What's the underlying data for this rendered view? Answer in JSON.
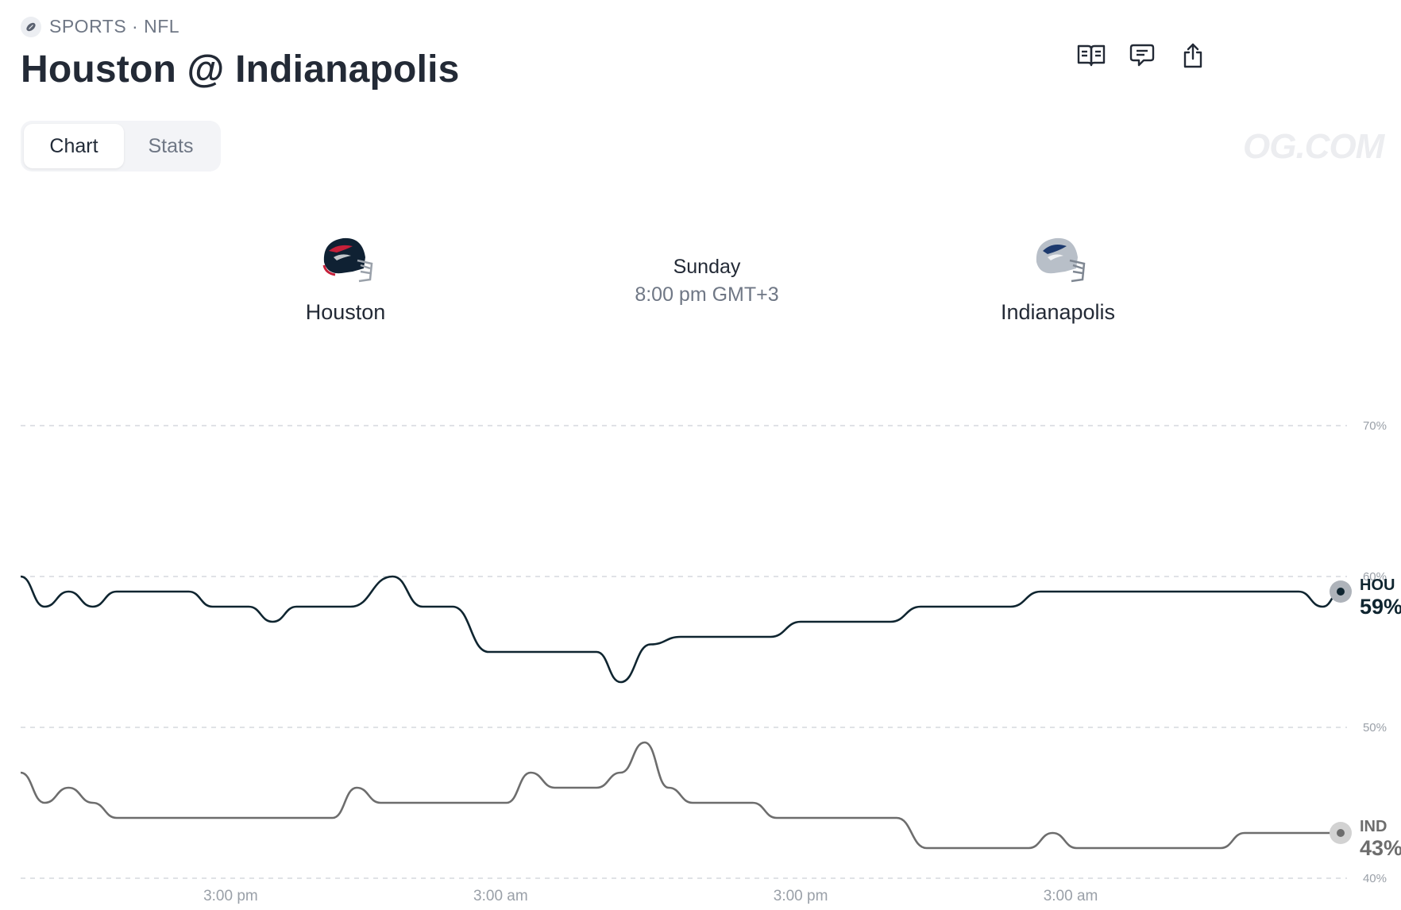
{
  "breadcrumb": {
    "text": "SPORTS · NFL",
    "icon": "football-icon"
  },
  "title": "Houston @ Indianapolis",
  "actions": [
    {
      "name": "rules-button",
      "icon": "book-icon"
    },
    {
      "name": "comments-button",
      "icon": "comment-icon"
    },
    {
      "name": "share-button",
      "icon": "share-icon"
    }
  ],
  "tabs": [
    {
      "label": "Chart",
      "active": true
    },
    {
      "label": "Stats",
      "active": false
    }
  ],
  "watermark": "OG.COM",
  "teams": {
    "home": {
      "name": "Houston",
      "icon": "houston-helmet-icon",
      "color": "#0f2133",
      "accent": "#c6203a"
    },
    "away": {
      "name": "Indianapolis",
      "icon": "indianapolis-helmet-icon",
      "color": "#b8bfc8",
      "accent": "#1d3a6e"
    }
  },
  "game": {
    "day": "Sunday",
    "time": "8:00 pm GMT+3"
  },
  "colors": {
    "hou_line": "#0f2530",
    "ind_line": "#6d6d6d",
    "grid": "#d6d9de",
    "tick": "#9aa0a8"
  },
  "chart_data": {
    "type": "line",
    "title": "",
    "xlabel": "",
    "ylabel": "",
    "ylim": [
      40,
      70
    ],
    "y_ticks": [
      "70%",
      "60%",
      "50%",
      "40%"
    ],
    "y_tick_values": [
      70,
      60,
      50,
      40
    ],
    "x_ticks": [
      "3:00 pm",
      "3:00 am",
      "3:00 pm",
      "3:00 am"
    ],
    "x_tick_positions": [
      3.5,
      8.0,
      13.0,
      17.5
    ],
    "x_range": [
      0,
      22
    ],
    "grid": true,
    "series": [
      {
        "name": "HOU",
        "end_label": "59%",
        "points": [
          [
            0.0,
            60
          ],
          [
            0.4,
            58
          ],
          [
            0.8,
            59
          ],
          [
            1.2,
            58
          ],
          [
            1.6,
            59
          ],
          [
            2.0,
            59
          ],
          [
            2.8,
            59
          ],
          [
            3.2,
            58
          ],
          [
            3.8,
            58
          ],
          [
            4.2,
            57
          ],
          [
            4.6,
            58
          ],
          [
            5.5,
            58
          ],
          [
            6.2,
            60
          ],
          [
            6.7,
            58
          ],
          [
            7.2,
            58
          ],
          [
            7.8,
            55
          ],
          [
            8.8,
            55
          ],
          [
            9.6,
            55
          ],
          [
            10.0,
            53
          ],
          [
            10.5,
            55.5
          ],
          [
            11.0,
            56
          ],
          [
            12.5,
            56
          ],
          [
            13.0,
            57
          ],
          [
            14.5,
            57
          ],
          [
            15.0,
            58
          ],
          [
            16.5,
            58
          ],
          [
            17.0,
            59
          ],
          [
            19.0,
            59
          ],
          [
            21.3,
            59
          ],
          [
            21.7,
            58
          ],
          [
            22.0,
            59
          ]
        ]
      },
      {
        "name": "IND",
        "end_label": "43%",
        "points": [
          [
            0.0,
            47
          ],
          [
            0.4,
            45
          ],
          [
            0.8,
            46
          ],
          [
            1.2,
            45
          ],
          [
            1.6,
            44
          ],
          [
            2.5,
            44
          ],
          [
            3.5,
            44
          ],
          [
            4.5,
            44
          ],
          [
            5.2,
            44
          ],
          [
            5.6,
            46
          ],
          [
            6.0,
            45
          ],
          [
            7.0,
            45
          ],
          [
            8.1,
            45
          ],
          [
            8.5,
            47
          ],
          [
            8.9,
            46
          ],
          [
            9.6,
            46
          ],
          [
            10.0,
            47
          ],
          [
            10.4,
            49
          ],
          [
            10.8,
            46
          ],
          [
            11.2,
            45
          ],
          [
            12.2,
            45
          ],
          [
            12.6,
            44
          ],
          [
            14.6,
            44
          ],
          [
            15.1,
            42
          ],
          [
            16.8,
            42
          ],
          [
            17.2,
            43
          ],
          [
            17.6,
            42
          ],
          [
            20.0,
            42
          ],
          [
            20.4,
            43
          ],
          [
            22.0,
            43
          ]
        ]
      }
    ]
  }
}
